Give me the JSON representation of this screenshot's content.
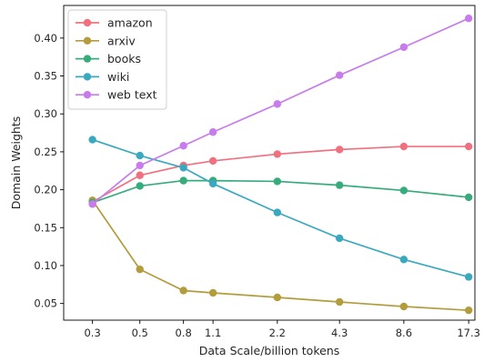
{
  "chart_data": {
    "type": "line",
    "title": "",
    "xlabel": "Data Scale/billion tokens",
    "ylabel": "Domain Weights",
    "x": [
      0.3,
      0.5,
      0.8,
      1.1,
      2.2,
      4.3,
      8.6,
      17.3
    ],
    "x_tick_labels": [
      "0.3",
      "0.5",
      "0.8",
      "1.1",
      "2.2",
      "4.3",
      "8.6",
      "17.3"
    ],
    "x_scale": "log",
    "xlim": [
      0.22,
      18.5
    ],
    "ylim": [
      0.028,
      0.443
    ],
    "y_ticks": [
      0.05,
      0.1,
      0.15,
      0.2,
      0.25,
      0.3,
      0.35,
      0.4
    ],
    "y_tick_labels": [
      "0.05",
      "0.10",
      "0.15",
      "0.20",
      "0.25",
      "0.30",
      "0.35",
      "0.40"
    ],
    "grid": false,
    "legend_position": "top-left",
    "series": [
      {
        "name": "amazon",
        "color": "#f0707f",
        "values": [
          0.184,
          0.219,
          0.232,
          0.238,
          0.247,
          0.253,
          0.257,
          0.257
        ]
      },
      {
        "name": "arxiv",
        "color": "#b39c3b",
        "values": [
          0.186,
          0.095,
          0.067,
          0.064,
          0.058,
          0.052,
          0.046,
          0.041
        ]
      },
      {
        "name": "books",
        "color": "#36ab7b",
        "values": [
          0.183,
          0.205,
          0.212,
          0.212,
          0.211,
          0.206,
          0.199,
          0.19
        ]
      },
      {
        "name": "wiki",
        "color": "#3aa9c0",
        "values": [
          0.266,
          0.245,
          0.229,
          0.208,
          0.17,
          0.136,
          0.108,
          0.085
        ]
      },
      {
        "name": "web text",
        "color": "#c87bec",
        "values": [
          0.181,
          0.232,
          0.258,
          0.276,
          0.313,
          0.351,
          0.388,
          0.426
        ]
      }
    ]
  }
}
